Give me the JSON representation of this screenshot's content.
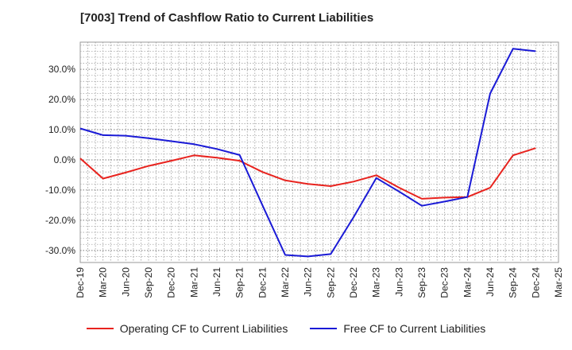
{
  "title": "[7003]  Trend of Cashflow Ratio to Current Liabilities",
  "chart_data": {
    "type": "line",
    "x": [
      "Dec-19",
      "Mar-20",
      "Jun-20",
      "Sep-20",
      "Dec-20",
      "Mar-21",
      "Jun-21",
      "Sep-21",
      "Dec-21",
      "Mar-22",
      "Jun-22",
      "Sep-22",
      "Dec-22",
      "Mar-23",
      "Jun-23",
      "Sep-23",
      "Dec-23",
      "Mar-24",
      "Jun-24",
      "Sep-24",
      "Dec-24",
      "Mar-25"
    ],
    "y_ticks": [
      "30.0%",
      "20.0%",
      "10.0%",
      "0.0%",
      "-10.0%",
      "-20.0%",
      "-30.0%"
    ],
    "ylim": [
      -34,
      39
    ],
    "grid": true,
    "legend_position": "bottom",
    "series": [
      {
        "name": "Operating CF to Current Liabilities",
        "color": "#e8231e",
        "x": [
          "Dec-19",
          "Mar-20",
          "Jun-20",
          "Sep-20",
          "Dec-20",
          "Mar-21",
          "Jun-21",
          "Sep-21",
          "Dec-21",
          "Mar-22",
          "Jun-22",
          "Sep-22",
          "Dec-22",
          "Mar-23",
          "Jun-23",
          "Sep-23",
          "Dec-23",
          "Mar-24",
          "Jun-24",
          "Sep-24",
          "Dec-24"
        ],
        "values": [
          0.5,
          -6.2,
          -4.2,
          -2.0,
          -0.3,
          1.5,
          0.7,
          -0.3,
          -4.0,
          -6.8,
          -8.0,
          -8.7,
          -7.2,
          -5.1,
          -9.2,
          -12.9,
          -12.5,
          -12.3,
          -9.2,
          1.5,
          3.9
        ]
      },
      {
        "name": "Free CF to Current Liabilities",
        "color": "#1a1ad6",
        "x": [
          "Dec-19",
          "Mar-20",
          "Jun-20",
          "Sep-20",
          "Dec-20",
          "Mar-21",
          "Jun-21",
          "Sep-21",
          "Dec-21",
          "Mar-22",
          "Jun-22",
          "Sep-22",
          "Dec-22",
          "Mar-23",
          "Jun-23",
          "Sep-23",
          "Dec-23",
          "Mar-24",
          "Jun-24",
          "Sep-24",
          "Dec-24"
        ],
        "values": [
          10.4,
          8.2,
          8.0,
          7.2,
          6.2,
          5.2,
          3.6,
          1.6,
          -15.0,
          -31.5,
          -32.0,
          -31.2,
          -19.0,
          -6.0,
          -10.5,
          -15.2,
          -13.8,
          -12.3,
          22.0,
          36.8,
          36.0
        ]
      }
    ]
  }
}
